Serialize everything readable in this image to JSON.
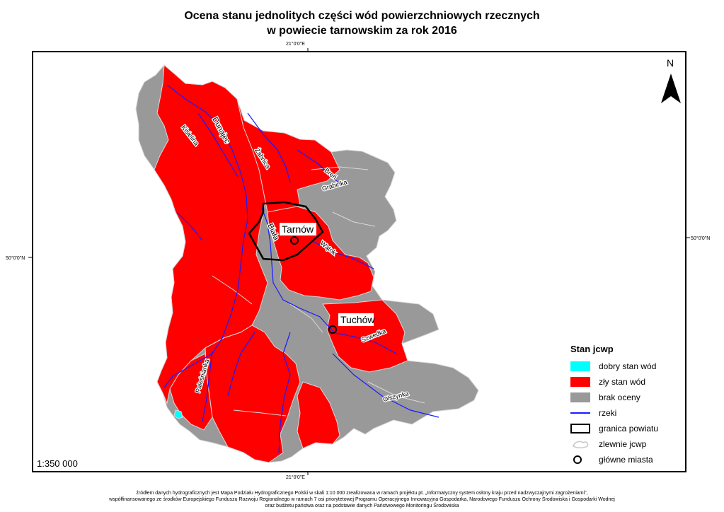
{
  "title": {
    "line1": "Ocena stanu jednolitych części wód powierzchniowych rzecznych",
    "line2": "w powiecie tarnowskim za rok 2016"
  },
  "coords": {
    "top": "21°0'0\"E",
    "bottom": "21°0'0\"E",
    "left": "50°0'0\"N",
    "right": "50°0'0\"N"
  },
  "north_label": "N",
  "scale": "1:350 000",
  "legend": {
    "title": "Stan jcwp",
    "items": [
      {
        "label": "dobry stan wód",
        "color": "#00ffff",
        "kind": "fill"
      },
      {
        "label": "zły stan wód",
        "color": "#ff0000",
        "kind": "fill"
      },
      {
        "label": "brak oceny",
        "color": "#999999",
        "kind": "fill"
      },
      {
        "label": "rzeki",
        "color": "#1a1aff",
        "kind": "line"
      },
      {
        "label": "granica powiatu",
        "color": "#000000",
        "kind": "box"
      },
      {
        "label": "zlewnie jcwp",
        "color": "#c8c8c8",
        "kind": "outline"
      },
      {
        "label": "główne miasta",
        "color": "#000000",
        "kind": "circle"
      }
    ]
  },
  "cities": {
    "tarnow": "Tarnów",
    "tuchow": "Tuchów"
  },
  "rivers": {
    "dunajec": "Dunajec",
    "kisielina": "Kisielina",
    "zabnica": "Żabnica",
    "breń": "Breń",
    "grabinka": "Grabinka",
    "biala": "Biała",
    "wątok": "Wątok",
    "szwedka": "Szwedka",
    "paleśnianka": "Paleśnianka",
    "olszynka": "Olszynka"
  },
  "footer": {
    "line1": "źródłem danych hydrograficznych jest Mapa Podziału Hydrograficznego Polski w skali 1:10 000 zrealizowana w ramach projektu pt. „Informatyczny system osłony kraju przed nadzwyczajnymi zagrożeniami\",",
    "line2": "współfinansowanego ze środków Europejskiego Funduszu Rozwoju Regionalnego w ramach 7 osi priorytetowej Programu Operacyjnego Innowacyjna Gospodarka, Narodowego Funduszu Ochrony Środowiska i Gospodarki Wodnej",
    "line3": "oraz budżetu państwa oraz na podstawie danych Państwowego Monitoringu Środowiska"
  }
}
